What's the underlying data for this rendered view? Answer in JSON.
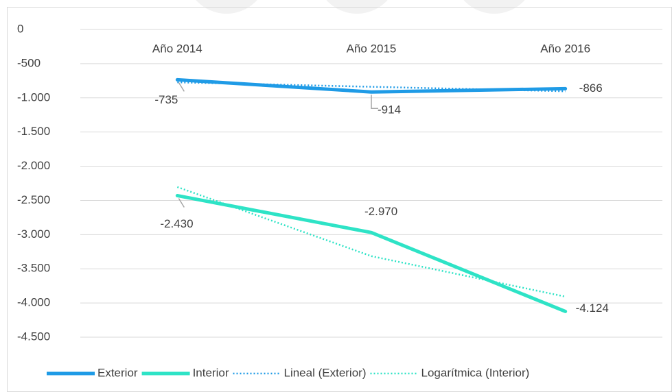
{
  "chart_data": {
    "type": "line",
    "categories": [
      "Año 2014",
      "Año 2015",
      "Año 2016"
    ],
    "series": [
      {
        "name": "Exterior",
        "color": "#1f9be6",
        "style": "solid",
        "values": [
          -735,
          -914,
          -866
        ],
        "value_labels": [
          "-735",
          "-914",
          "-866"
        ]
      },
      {
        "name": "Interior",
        "color": "#2ee3c6",
        "style": "solid",
        "values": [
          -2430,
          -2970,
          -4124
        ],
        "value_labels": [
          "-2.430",
          "-2.970",
          "-4.124"
        ]
      },
      {
        "name": "Lineal (Exterior)",
        "color": "#1f9be6",
        "style": "dotted",
        "values": [
          -773,
          -838,
          -904
        ]
      },
      {
        "name": "Logarítmica (Interior)",
        "color": "#2ee3c6",
        "style": "dotted",
        "values": [
          -2304,
          -3315,
          -3907
        ]
      }
    ],
    "ylim": [
      -4500,
      0
    ],
    "yticks": [
      0,
      -500,
      {
        "value": -1000,
        "label": "-1.000"
      },
      {
        "value": -1500,
        "label": "-1.500"
      },
      {
        "value": -2000,
        "label": "-2.000"
      },
      {
        "value": -2500,
        "label": "-2.500"
      },
      {
        "value": -3000,
        "label": "-3.000"
      },
      {
        "value": -3500,
        "label": "-3.500"
      },
      {
        "value": -4000,
        "label": "-4.000"
      },
      {
        "value": -4500,
        "label": "-4.500"
      }
    ],
    "grid": true,
    "legend": "bottom"
  }
}
